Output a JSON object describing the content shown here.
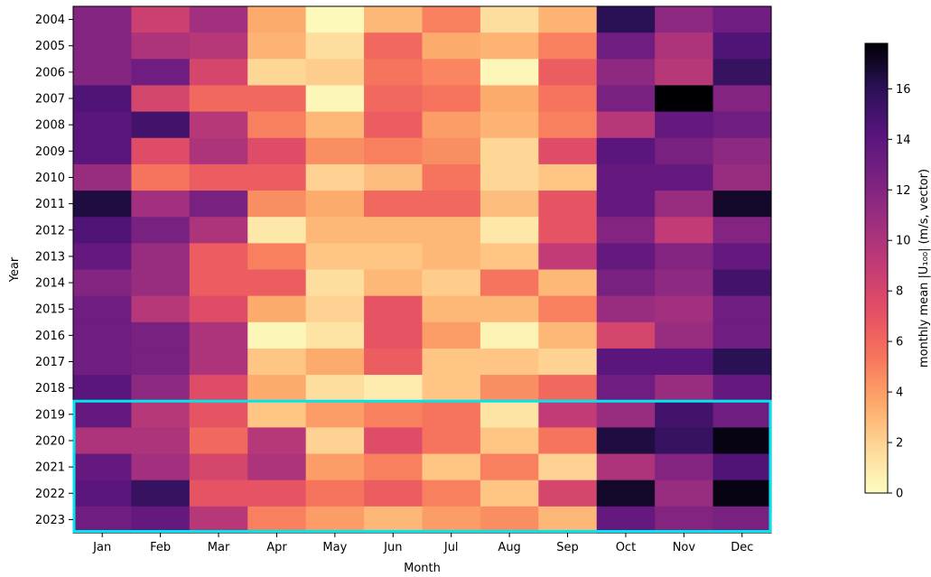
{
  "chart_data": {
    "type": "heatmap",
    "title": "",
    "xlabel": "Month",
    "ylabel": "Year",
    "x_categories": [
      "Jan",
      "Feb",
      "Mar",
      "Apr",
      "May",
      "Jun",
      "Jul",
      "Aug",
      "Sep",
      "Oct",
      "Nov",
      "Dec"
    ],
    "y_categories": [
      "2004",
      "2005",
      "2006",
      "2007",
      "2008",
      "2009",
      "2010",
      "2011",
      "2012",
      "2013",
      "2014",
      "2015",
      "2016",
      "2017",
      "2018",
      "2019",
      "2020",
      "2021",
      "2022",
      "2023"
    ],
    "values": [
      [
        12.0,
        8.5,
        10.5,
        3.5,
        0.2,
        3.0,
        5.0,
        1.5,
        3.2,
        16.0,
        11.5,
        13.0
      ],
      [
        12.0,
        10.0,
        9.5,
        3.2,
        1.5,
        6.0,
        3.5,
        3.2,
        5.0,
        13.0,
        10.0,
        14.5
      ],
      [
        12.0,
        13.0,
        8.0,
        1.8,
        2.2,
        5.5,
        4.8,
        0.3,
        6.5,
        11.5,
        9.5,
        15.5
      ],
      [
        14.5,
        8.0,
        6.0,
        6.0,
        0.3,
        6.0,
        5.5,
        3.5,
        5.5,
        12.5,
        18.0,
        12.0
      ],
      [
        14.0,
        15.0,
        9.5,
        5.0,
        3.0,
        6.5,
        4.0,
        3.2,
        5.0,
        9.5,
        13.5,
        13.0
      ],
      [
        14.0,
        7.5,
        10.0,
        7.5,
        4.5,
        5.0,
        4.5,
        1.8,
        7.5,
        14.0,
        12.5,
        11.5
      ],
      [
        11.0,
        5.5,
        6.5,
        6.5,
        2.0,
        2.8,
        5.5,
        1.8,
        2.5,
        13.5,
        13.5,
        11.0
      ],
      [
        16.5,
        10.5,
        12.5,
        4.5,
        3.5,
        6.0,
        6.0,
        2.8,
        7.0,
        13.5,
        11.0,
        17.0
      ],
      [
        14.5,
        12.5,
        10.0,
        1.0,
        3.0,
        3.0,
        3.0,
        1.0,
        7.0,
        12.0,
        9.0,
        12.0
      ],
      [
        13.5,
        11.0,
        6.5,
        5.0,
        2.5,
        2.5,
        3.0,
        2.5,
        9.0,
        13.5,
        12.0,
        13.5
      ],
      [
        12.0,
        11.0,
        6.5,
        6.5,
        1.5,
        3.0,
        2.2,
        5.5,
        3.0,
        12.5,
        11.5,
        15.0
      ],
      [
        13.0,
        9.5,
        7.5,
        3.5,
        2.0,
        7.0,
        3.0,
        3.0,
        5.0,
        11.0,
        10.5,
        13.0
      ],
      [
        13.0,
        12.5,
        10.0,
        0.3,
        1.2,
        7.0,
        4.0,
        0.5,
        3.0,
        8.0,
        11.0,
        13.0
      ],
      [
        13.0,
        12.5,
        10.0,
        2.5,
        3.5,
        6.5,
        2.5,
        2.5,
        2.0,
        14.0,
        14.0,
        16.0
      ],
      [
        14.0,
        11.5,
        7.5,
        3.5,
        1.5,
        0.8,
        2.5,
        4.5,
        6.0,
        13.0,
        11.0,
        13.5
      ],
      [
        13.5,
        9.5,
        7.0,
        2.5,
        4.0,
        5.0,
        5.5,
        1.2,
        9.0,
        11.0,
        15.0,
        13.0
      ],
      [
        10.0,
        10.0,
        6.0,
        9.5,
        2.0,
        7.5,
        5.5,
        2.5,
        5.5,
        16.5,
        15.5,
        17.5
      ],
      [
        13.5,
        10.5,
        8.0,
        10.0,
        4.0,
        5.0,
        2.5,
        5.0,
        2.0,
        10.0,
        12.0,
        14.5
      ],
      [
        14.0,
        15.5,
        7.0,
        7.0,
        5.5,
        6.5,
        5.0,
        2.5,
        8.0,
        17.0,
        11.0,
        17.5
      ],
      [
        13.0,
        13.5,
        9.5,
        5.0,
        4.0,
        3.0,
        4.0,
        4.5,
        3.0,
        13.5,
        12.0,
        12.5
      ]
    ],
    "colormap": "magma_r",
    "colorbar": {
      "label": "monthly mean |U₁₀₀| (m/s, vector)",
      "range": [
        0,
        17.8
      ],
      "ticks": [
        "0",
        "2",
        "4",
        "6",
        "8",
        "10",
        "12",
        "14",
        "16"
      ]
    },
    "highlight": {
      "years": [
        "2019",
        "2023"
      ],
      "color": "#00e5ee"
    },
    "grid": false
  }
}
